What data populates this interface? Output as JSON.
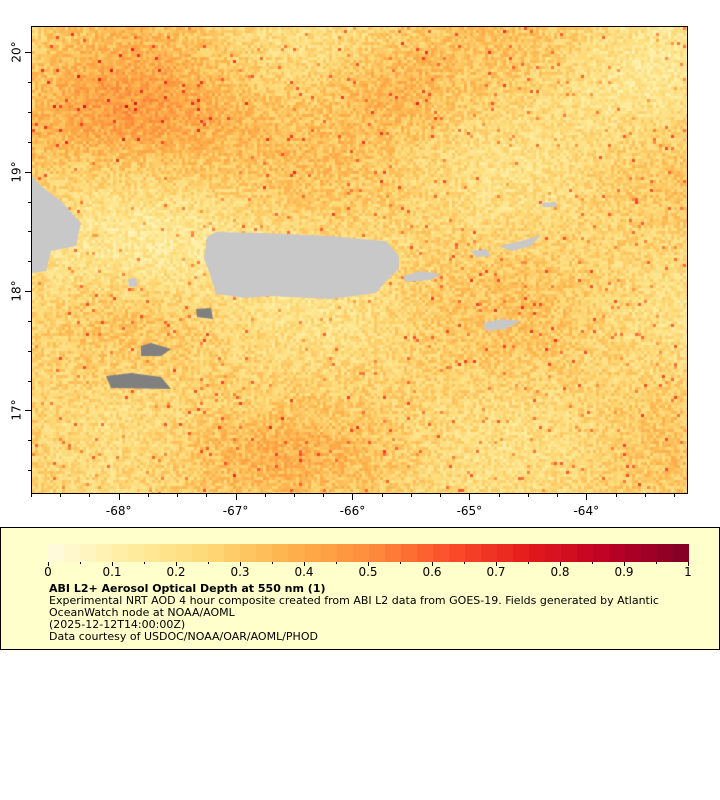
{
  "map": {
    "variable": "ABI L2+ Aerosol Optical Depth at 550 nm",
    "lon_range": [
      -68.75,
      -63.13
    ],
    "lat_range": [
      16.3,
      20.22
    ],
    "lon_ticks": [
      {
        "value": -68,
        "label": "-68°"
      },
      {
        "value": -67,
        "label": "-67°"
      },
      {
        "value": -66,
        "label": "-66°"
      },
      {
        "value": -65,
        "label": "-65°"
      },
      {
        "value": -64,
        "label": "-64°"
      }
    ],
    "lat_ticks": [
      {
        "value": 20,
        "label": "20°"
      },
      {
        "value": 19,
        "label": "19°"
      },
      {
        "value": 18,
        "label": "18°"
      },
      {
        "value": 17,
        "label": "17°"
      }
    ],
    "land_color": "#c8c8c8",
    "nodata_color": "#808080"
  },
  "colorbar": {
    "range": [
      0,
      1
    ],
    "steps": 40,
    "stops": [
      "#fffde0",
      "#ffeda0",
      "#fed976",
      "#feb24c",
      "#fd8d3c",
      "#fc4e2a",
      "#e31a1c",
      "#bd0026",
      "#800026"
    ],
    "tick_labels": [
      "0",
      "0.1",
      "0.2",
      "0.3",
      "0.4",
      "0.5",
      "0.6",
      "0.7",
      "0.8",
      "0.9",
      "1"
    ]
  },
  "legend": {
    "title": "ABI L2+ Aerosol Optical Depth at 550 nm (1)",
    "line1": "Experimental NRT AOD 4 hour composite created from ABI L2 data from GOES-19. Fields generated by Atlantic",
    "line2": "OceanWatch node at NOAA/AOML",
    "line3": "(2025-12-12T14:00:00Z)",
    "line4": "Data courtesy of USDOC/NOAA/OAR/AOML/PHOD"
  }
}
